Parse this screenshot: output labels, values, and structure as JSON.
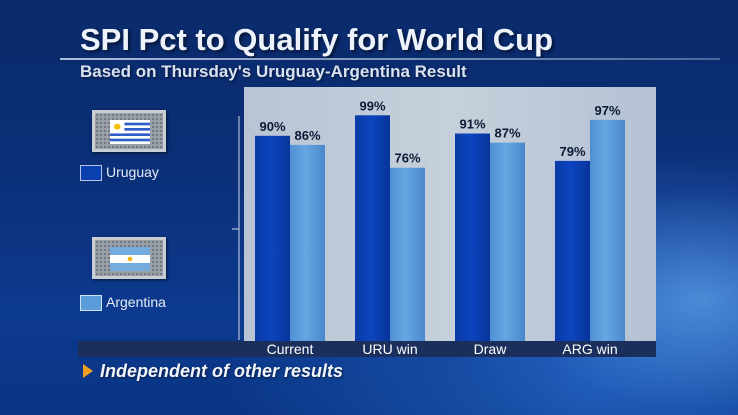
{
  "colors": {
    "uruguay": "#0a3fb0",
    "argentina": "#5b9ddb",
    "label": "#0b1a33",
    "tick_label": "#ffffff"
  },
  "icons": {
    "uruguay_flag": "uruguay-flag-icon",
    "argentina_flag": "argentina-flag-icon",
    "footnote_bullet": "triangle-right-icon"
  },
  "footnote": "Independent of other results",
  "chart_data": {
    "type": "bar",
    "title": "SPI Pct to Qualify for World Cup",
    "subtitle": "Based on Thursday's Uruguay-Argentina Result",
    "categories": [
      "Current",
      "URU win",
      "Draw",
      "ARG win"
    ],
    "series": [
      {
        "name": "Uruguay",
        "values": [
          90,
          99,
          91,
          79
        ],
        "labels": [
          "90%",
          "99%",
          "91%",
          "79%"
        ]
      },
      {
        "name": "Argentina",
        "values": [
          86,
          76,
          87,
          97
        ],
        "labels": [
          "86%",
          "76%",
          "87%",
          "97%"
        ]
      }
    ],
    "xlabel": "",
    "ylabel": "",
    "ylim": [
      0,
      100
    ],
    "grid": false,
    "legend": "left"
  }
}
